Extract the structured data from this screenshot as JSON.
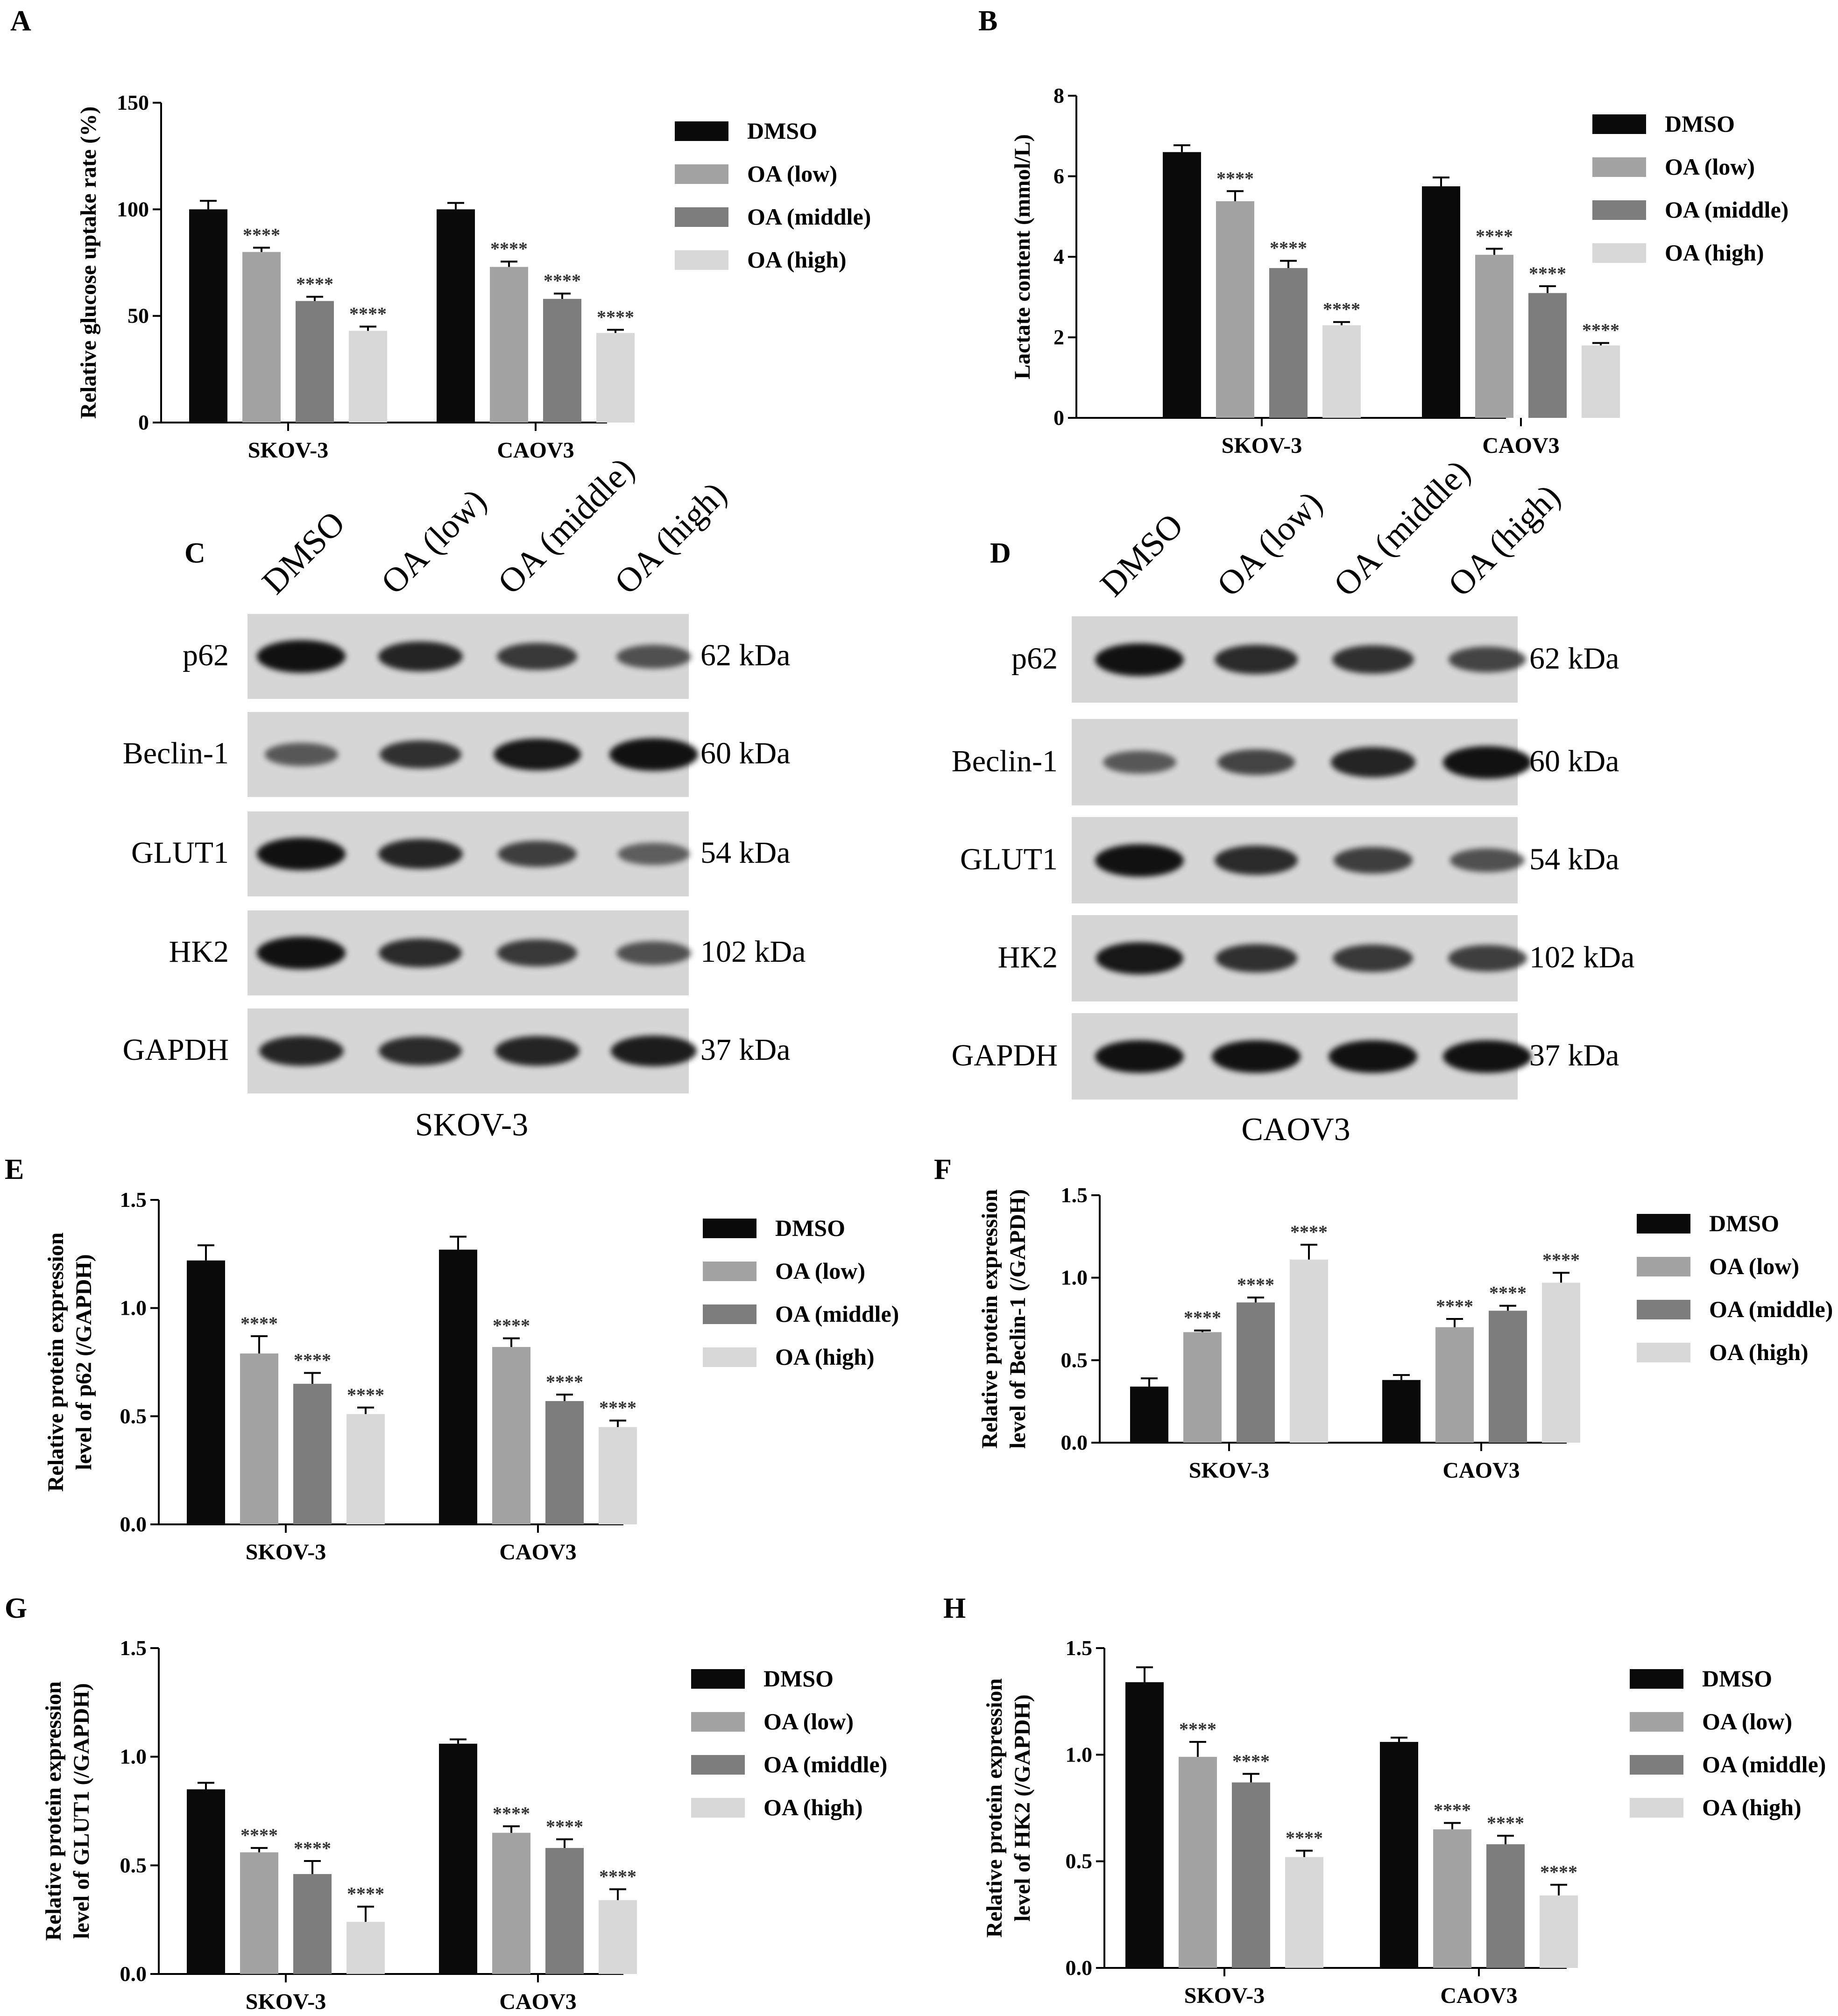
{
  "colors": {
    "DMSO": "#0a0a0a",
    "OA (low)": "#a3a3a3",
    "OA (middle)": "#7d7d7d",
    "OA (high)": "#d8d8d8",
    "membrane": "#d6d6d6",
    "band": "#111111"
  },
  "panels": {
    "A": "A",
    "B": "B",
    "C": "C",
    "D": "D",
    "E": "E",
    "F": "F",
    "G": "G",
    "H": "H"
  },
  "chart_data": [
    {
      "id": "A",
      "type": "bar",
      "categories": [
        "SKOV-3",
        "CAOV3"
      ],
      "ylabel": "Relative glucose uptake rate (%)",
      "ylim": [
        0,
        150
      ],
      "yticks": [
        0,
        50,
        100,
        150
      ],
      "series": [
        {
          "name": "DMSO",
          "values": [
            100,
            100
          ],
          "errors": [
            4,
            3
          ]
        },
        {
          "name": "OA (low)",
          "values": [
            80,
            73
          ],
          "errors": [
            2,
            2.5
          ],
          "sig": [
            "****",
            "****"
          ]
        },
        {
          "name": "OA (middle)",
          "values": [
            57,
            58
          ],
          "errors": [
            2,
            2.5
          ],
          "sig": [
            "****",
            "****"
          ]
        },
        {
          "name": "OA (high)",
          "values": [
            43,
            42
          ],
          "errors": [
            2,
            1.5
          ],
          "sig": [
            "****",
            "****"
          ]
        }
      ],
      "legend": "right"
    },
    {
      "id": "B",
      "type": "bar",
      "categories": [
        "SKOV-3",
        "CAOV3"
      ],
      "ylabel": "Lactate content (mmol/L)",
      "ylim": [
        0,
        8
      ],
      "yticks": [
        0,
        2,
        4,
        6,
        8
      ],
      "series": [
        {
          "name": "DMSO",
          "values": [
            6.6,
            5.75
          ],
          "errors": [
            0.17,
            0.22
          ]
        },
        {
          "name": "OA (low)",
          "values": [
            5.38,
            4.05
          ],
          "errors": [
            0.25,
            0.15
          ],
          "sig": [
            "****",
            "****"
          ]
        },
        {
          "name": "OA (middle)",
          "values": [
            3.72,
            3.1
          ],
          "errors": [
            0.18,
            0.17
          ],
          "sig": [
            "****",
            "****"
          ]
        },
        {
          "name": "OA (high)",
          "values": [
            2.3,
            1.8
          ],
          "errors": [
            0.08,
            0.06
          ],
          "sig": [
            "****",
            "****"
          ]
        }
      ],
      "legend": "right"
    },
    {
      "id": "E",
      "type": "bar",
      "categories": [
        "SKOV-3",
        "CAOV3"
      ],
      "ylabel": "Relative protein expression level of p62 (/GAPDH)",
      "ylim": [
        0,
        1.5
      ],
      "yticks": [
        0.0,
        0.5,
        1.0,
        1.5
      ],
      "series": [
        {
          "name": "DMSO",
          "values": [
            1.22,
            1.27
          ],
          "errors": [
            0.07,
            0.06
          ]
        },
        {
          "name": "OA (low)",
          "values": [
            0.79,
            0.82
          ],
          "errors": [
            0.08,
            0.04
          ],
          "sig": [
            "****",
            "****"
          ]
        },
        {
          "name": "OA (middle)",
          "values": [
            0.65,
            0.57
          ],
          "errors": [
            0.05,
            0.03
          ],
          "sig": [
            "****",
            "****"
          ]
        },
        {
          "name": "OA (high)",
          "values": [
            0.51,
            0.45
          ],
          "errors": [
            0.03,
            0.03
          ],
          "sig": [
            "****",
            "****"
          ]
        }
      ],
      "legend": "right"
    },
    {
      "id": "F",
      "type": "bar",
      "categories": [
        "SKOV-3",
        "CAOV3"
      ],
      "ylabel": "Relative protein expression level of Beclin-1 (/GAPDH)",
      "ylim": [
        0,
        1.5
      ],
      "yticks": [
        0.0,
        0.5,
        1.0,
        1.5
      ],
      "series": [
        {
          "name": "DMSO",
          "values": [
            0.34,
            0.38
          ],
          "errors": [
            0.05,
            0.03
          ]
        },
        {
          "name": "OA (low)",
          "values": [
            0.67,
            0.7
          ],
          "errors": [
            0.01,
            0.05
          ],
          "sig": [
            "****",
            "****"
          ]
        },
        {
          "name": "OA (middle)",
          "values": [
            0.85,
            0.8
          ],
          "errors": [
            0.03,
            0.03
          ],
          "sig": [
            "****",
            "****"
          ]
        },
        {
          "name": "OA (high)",
          "values": [
            1.11,
            0.97
          ],
          "errors": [
            0.09,
            0.06
          ],
          "sig": [
            "****",
            "****"
          ]
        }
      ],
      "legend": "right"
    },
    {
      "id": "G",
      "type": "bar",
      "categories": [
        "SKOV-3",
        "CAOV3"
      ],
      "ylabel": "Relative protein expression level of GLUT1 (/GAPDH)",
      "ylim": [
        0,
        1.5
      ],
      "yticks": [
        0.0,
        0.5,
        1.0,
        1.5
      ],
      "series": [
        {
          "name": "DMSO",
          "values": [
            0.85,
            1.06
          ],
          "errors": [
            0.03,
            0.02
          ]
        },
        {
          "name": "OA (low)",
          "values": [
            0.56,
            0.65
          ],
          "errors": [
            0.02,
            0.03
          ],
          "sig": [
            "****",
            "****"
          ]
        },
        {
          "name": "OA (middle)",
          "values": [
            0.46,
            0.58
          ],
          "errors": [
            0.06,
            0.04
          ],
          "sig": [
            "****",
            "****"
          ]
        },
        {
          "name": "OA (high)",
          "values": [
            0.24,
            0.34
          ],
          "errors": [
            0.07,
            0.05
          ],
          "sig": [
            "****",
            "****"
          ]
        }
      ],
      "legend": "right"
    },
    {
      "id": "H",
      "type": "bar",
      "categories": [
        "SKOV-3",
        "CAOV3"
      ],
      "ylabel": "Relative protein expression level of HK2 (/GAPDH)",
      "ylim": [
        0,
        1.5
      ],
      "yticks": [
        0.0,
        0.5,
        1.0,
        1.5
      ],
      "series": [
        {
          "name": "DMSO",
          "values": [
            1.34,
            1.06
          ],
          "errors": [
            0.07,
            0.02
          ]
        },
        {
          "name": "OA (low)",
          "values": [
            0.99,
            0.65
          ],
          "errors": [
            0.07,
            0.03
          ],
          "sig": [
            "****",
            "****"
          ]
        },
        {
          "name": "OA (middle)",
          "values": [
            0.87,
            0.58
          ],
          "errors": [
            0.04,
            0.04
          ],
          "sig": [
            "****",
            "****"
          ]
        },
        {
          "name": "OA (high)",
          "values": [
            0.52,
            0.34
          ],
          "errors": [
            0.03,
            0.05
          ],
          "sig": [
            "****",
            "****"
          ]
        }
      ],
      "legend": "right"
    }
  ],
  "blots": [
    {
      "id": "C",
      "lanes": [
        "DMSO",
        "OA (low)",
        "OA (middle)",
        "OA (high)"
      ],
      "caption": "SKOV-3",
      "rows": [
        {
          "protein": "p62",
          "kda": "62 kDa",
          "intensity": [
            1.0,
            0.85,
            0.7,
            0.5
          ]
        },
        {
          "protein": "Beclin-1",
          "kda": "60 kDa",
          "intensity": [
            0.45,
            0.75,
            0.95,
            1.0
          ]
        },
        {
          "protein": "GLUT1",
          "kda": "54 kDa",
          "intensity": [
            1.0,
            0.85,
            0.65,
            0.4
          ]
        },
        {
          "protein": "HK2",
          "kda": "102 kDa",
          "intensity": [
            1.0,
            0.8,
            0.7,
            0.5
          ]
        },
        {
          "protein": "GAPDH",
          "kda": "37 kDa",
          "intensity": [
            0.85,
            0.8,
            0.85,
            0.9
          ]
        }
      ]
    },
    {
      "id": "D",
      "lanes": [
        "DMSO",
        "OA (low)",
        "OA (middle)",
        "OA (high)"
      ],
      "caption": "CAOV3",
      "rows": [
        {
          "protein": "p62",
          "kda": "62 kDa",
          "intensity": [
            1.0,
            0.8,
            0.75,
            0.6
          ]
        },
        {
          "protein": "Beclin-1",
          "kda": "60 kDa",
          "intensity": [
            0.45,
            0.6,
            0.85,
            1.0
          ]
        },
        {
          "protein": "GLUT1",
          "kda": "54 kDa",
          "intensity": [
            1.0,
            0.8,
            0.65,
            0.5
          ]
        },
        {
          "protein": "HK2",
          "kda": "102 kDa",
          "intensity": [
            0.95,
            0.75,
            0.7,
            0.65
          ]
        },
        {
          "protein": "GAPDH",
          "kda": "37 kDa",
          "intensity": [
            1.0,
            1.0,
            1.0,
            1.0
          ]
        }
      ]
    }
  ]
}
